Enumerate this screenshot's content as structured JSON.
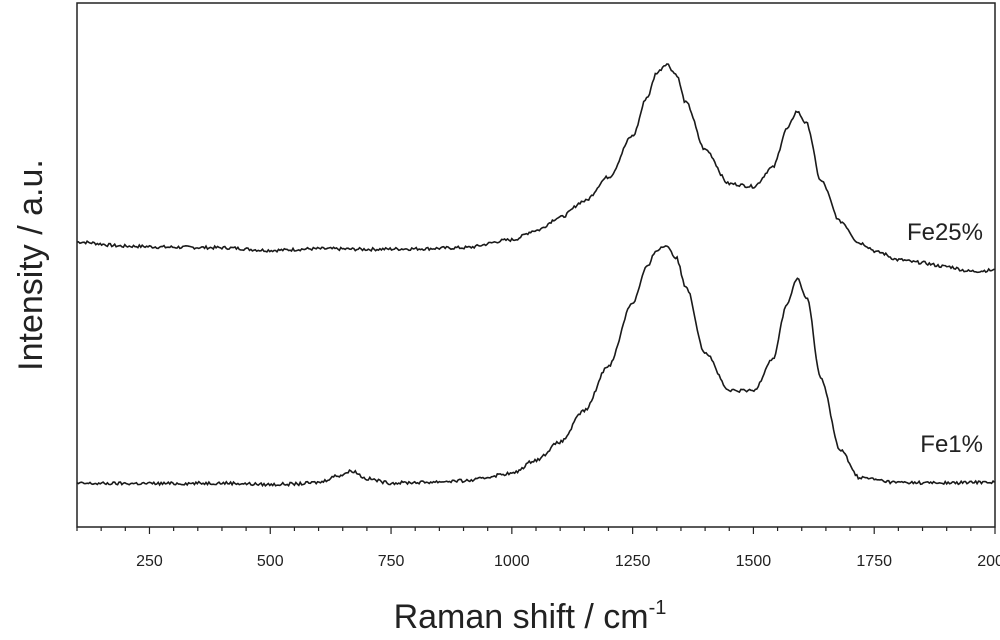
{
  "chart_data": {
    "type": "line",
    "title": "",
    "xlabel": "Raman shift / cm",
    "xlabel_superscript": "-1",
    "ylabel": "Intensity / a.u.",
    "xlim": [
      100,
      2000
    ],
    "ylim": [
      0,
      1
    ],
    "x_ticks": [
      250,
      500,
      750,
      1000,
      1250,
      1500,
      1750,
      2000
    ],
    "x_tick_labels": [
      "250",
      "500",
      "750",
      "1000",
      "1250",
      "1500",
      "1750",
      "2000"
    ],
    "y_ticks_shown": false,
    "grid": false,
    "series": [
      {
        "name": "Fe25%",
        "color": "#1a1a1a",
        "x": [
          100,
          200,
          300,
          400,
          500,
          600,
          700,
          800,
          900,
          1000,
          1050,
          1100,
          1150,
          1200,
          1250,
          1280,
          1300,
          1320,
          1340,
          1360,
          1400,
          1450,
          1500,
          1540,
          1570,
          1590,
          1610,
          1640,
          1680,
          1720,
          1760,
          1800,
          1840,
          1900,
          1950,
          2000
        ],
        "y": [
          0.544,
          0.536,
          0.534,
          0.533,
          0.528,
          0.531,
          0.53,
          0.531,
          0.533,
          0.548,
          0.566,
          0.591,
          0.622,
          0.668,
          0.746,
          0.82,
          0.867,
          0.884,
          0.864,
          0.81,
          0.72,
          0.655,
          0.65,
          0.686,
          0.76,
          0.793,
          0.77,
          0.66,
          0.583,
          0.542,
          0.524,
          0.51,
          0.505,
          0.497,
          0.488,
          0.49
        ]
      },
      {
        "name": "Fe1%",
        "color": "#1a1a1a",
        "x": [
          100,
          200,
          300,
          400,
          500,
          550,
          600,
          640,
          670,
          700,
          750,
          800,
          900,
          1000,
          1050,
          1100,
          1150,
          1200,
          1250,
          1280,
          1300,
          1320,
          1340,
          1360,
          1400,
          1450,
          1500,
          1540,
          1570,
          1590,
          1610,
          1640,
          1680,
          1720,
          1800,
          1900,
          2000
        ],
        "y": [
          0.083,
          0.083,
          0.083,
          0.084,
          0.081,
          0.082,
          0.085,
          0.098,
          0.107,
          0.092,
          0.084,
          0.085,
          0.088,
          0.102,
          0.128,
          0.162,
          0.222,
          0.308,
          0.428,
          0.496,
          0.529,
          0.537,
          0.514,
          0.459,
          0.333,
          0.26,
          0.26,
          0.321,
          0.426,
          0.474,
          0.437,
          0.283,
          0.146,
          0.094,
          0.085,
          0.084,
          0.086
        ]
      }
    ]
  }
}
